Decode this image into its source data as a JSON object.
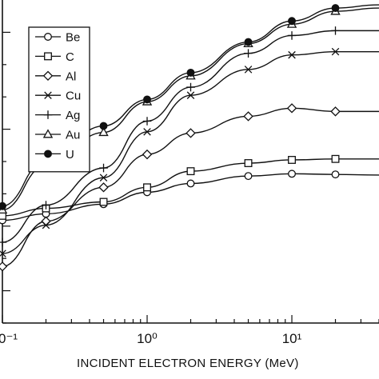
{
  "chart_data": {
    "type": "line",
    "xlabel": "INCIDENT ELECTRON ENERGY (MeV)",
    "ylabel": "",
    "title": "",
    "x_scale": "log",
    "xlim": [
      0.1,
      40
    ],
    "y_axis_numbered": false,
    "y_major_ticks": [
      0.1,
      0.3,
      0.6,
      0.9
    ],
    "y_minor_ticks": [
      0.0,
      0.2,
      0.4,
      0.5,
      0.7,
      0.8
    ],
    "ylim": [
      0,
      1
    ],
    "x_tick_labels": [
      {
        "value": 0.1,
        "label": "0⁻¹"
      },
      {
        "value": 1,
        "label": "10⁰"
      },
      {
        "value": 10,
        "label": "10¹"
      }
    ],
    "legend": {
      "placement": "top-left"
    },
    "x": [
      0.1,
      0.2,
      0.5,
      1,
      2,
      5,
      10,
      20,
      40
    ],
    "series": [
      {
        "name": "Be",
        "marker": "circle-open",
        "values": [
          0.318,
          0.338,
          0.368,
          0.405,
          0.432,
          0.455,
          0.462,
          0.46,
          0.458
        ]
      },
      {
        "name": "C",
        "marker": "square-open",
        "values": [
          0.332,
          0.355,
          0.375,
          0.42,
          0.47,
          0.495,
          0.505,
          0.508,
          0.508
        ]
      },
      {
        "name": "Al",
        "marker": "diamond-open",
        "values": [
          0.175,
          0.315,
          0.42,
          0.522,
          0.588,
          0.64,
          0.665,
          0.655,
          0.655
        ]
      },
      {
        "name": "Cu",
        "marker": "x",
        "values": [
          0.215,
          0.303,
          0.45,
          0.592,
          0.705,
          0.785,
          0.83,
          0.84,
          0.84
        ]
      },
      {
        "name": "Ag",
        "marker": "plus",
        "values": [
          0.25,
          0.365,
          0.48,
          0.625,
          0.73,
          0.835,
          0.89,
          0.905,
          0.905
        ]
      },
      {
        "name": "Au",
        "marker": "triangle-open",
        "values": [
          0.35,
          0.49,
          0.59,
          0.685,
          0.765,
          0.865,
          0.925,
          0.965,
          0.975
        ]
      },
      {
        "name": "U",
        "marker": "circle-filled",
        "values": [
          0.362,
          0.505,
          0.61,
          0.692,
          0.775,
          0.87,
          0.935,
          0.975,
          0.985
        ]
      }
    ]
  }
}
